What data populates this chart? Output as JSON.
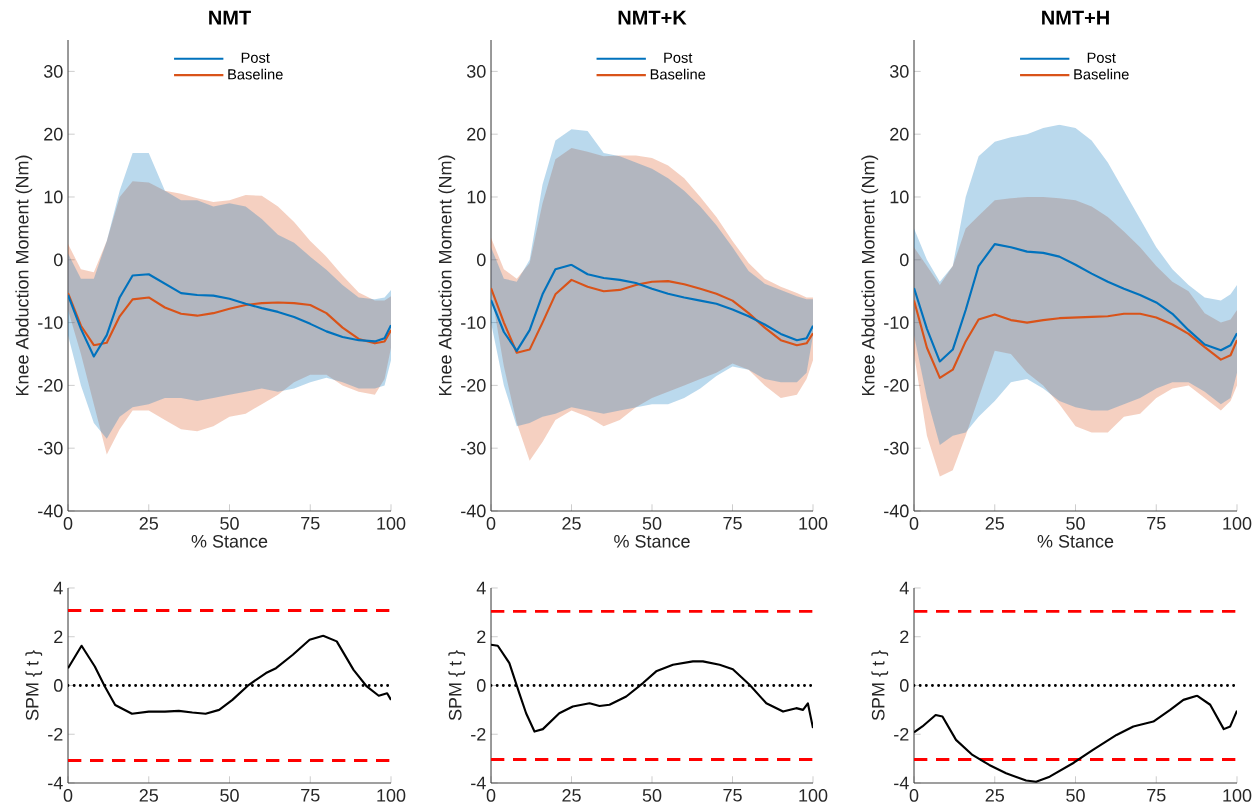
{
  "chart_data": [
    {
      "type": "line",
      "title": "NMT",
      "xlabel": "% Stance",
      "ylabel": "Knee Abduction Moment (Nm)",
      "legend": "top",
      "x": [
        0,
        4,
        8,
        12,
        16,
        20,
        25,
        30,
        35,
        40,
        45,
        50,
        55,
        60,
        65,
        70,
        75,
        80,
        85,
        90,
        95,
        98,
        100
      ],
      "xlim": [
        0,
        100
      ],
      "ylim": [
        -40,
        35
      ],
      "xticks": [
        0,
        25,
        50,
        75,
        100
      ],
      "yticks": [
        -40,
        -30,
        -20,
        -10,
        0,
        10,
        20,
        30
      ],
      "series": [
        {
          "name": "Post",
          "color": "#0072bd",
          "values": [
            -5.6,
            -11,
            -15.4,
            -12,
            -6,
            -2.5,
            -2.3,
            -3.8,
            -5.3,
            -5.6,
            -5.7,
            -6.2,
            -7,
            -7.7,
            -8.3,
            -9.1,
            -10.2,
            -11.4,
            -12.3,
            -12.8,
            -13,
            -12.5,
            -10.4
          ],
          "upper": [
            1,
            -3,
            -3,
            3,
            11,
            17,
            17,
            11,
            9.5,
            9.5,
            8.5,
            9,
            8.5,
            6.5,
            4,
            2.7,
            0.5,
            -1.6,
            -4,
            -6,
            -6.3,
            -6,
            -4.8
          ],
          "lower": [
            -12,
            -20,
            -26,
            -28.5,
            -25,
            -23.5,
            -23,
            -22,
            -22,
            -22.5,
            -22,
            -21.5,
            -21,
            -20.5,
            -21,
            -20.5,
            -19.5,
            -18.8,
            -19.5,
            -20.5,
            -20.5,
            -20,
            -16
          ]
        },
        {
          "name": "Baseline",
          "color": "#d95319",
          "values": [
            -5.3,
            -10.5,
            -13.6,
            -13.2,
            -9,
            -6.3,
            -6,
            -7.6,
            -8.6,
            -8.9,
            -8.5,
            -7.8,
            -7.2,
            -6.9,
            -6.8,
            -6.9,
            -7.2,
            -8.5,
            -10.8,
            -12.6,
            -13.3,
            -13,
            -11.2
          ],
          "upper": [
            2.5,
            -1.5,
            -2,
            3,
            10,
            12.5,
            12.3,
            11,
            10.5,
            9.8,
            9.2,
            9.5,
            10.3,
            10.2,
            8.5,
            6,
            3,
            0.5,
            -2.5,
            -5.2,
            -6.5,
            -6.5,
            -5.8
          ],
          "lower": [
            -8,
            -15,
            -23,
            -31,
            -27,
            -24,
            -24,
            -25.5,
            -27,
            -27.3,
            -26.5,
            -25,
            -24.5,
            -23,
            -21.5,
            -19.5,
            -18.3,
            -18.3,
            -20,
            -21,
            -21.5,
            -19,
            -14
          ]
        }
      ]
    },
    {
      "type": "line",
      "title": "NMT+K",
      "xlabel": "% Stance",
      "ylabel": "Knee Abduction Moment (Nm)",
      "legend": "top",
      "x": [
        0,
        4,
        8,
        12,
        16,
        20,
        25,
        30,
        35,
        40,
        45,
        50,
        55,
        60,
        65,
        70,
        75,
        80,
        85,
        90,
        95,
        98,
        100
      ],
      "xlim": [
        0,
        100
      ],
      "ylim": [
        -40,
        35
      ],
      "xticks": [
        0,
        25,
        50,
        75,
        100
      ],
      "yticks": [
        -40,
        -30,
        -20,
        -10,
        0,
        10,
        20,
        30
      ],
      "series": [
        {
          "name": "Post",
          "color": "#0072bd",
          "values": [
            -6.4,
            -11.5,
            -14.5,
            -11.2,
            -5.5,
            -1.5,
            -0.8,
            -2.3,
            -2.9,
            -3.2,
            -3.7,
            -4.6,
            -5.4,
            -6,
            -6.5,
            -7,
            -7.9,
            -9,
            -10.3,
            -11.8,
            -12.8,
            -12.5,
            -10.5
          ],
          "upper": [
            2,
            -3,
            -3.5,
            0,
            12,
            19,
            20.8,
            20.5,
            17,
            16.5,
            15.5,
            14.5,
            13,
            11,
            8.5,
            5.5,
            2,
            -1.8,
            -3.8,
            -4.8,
            -5.8,
            -6.3,
            -6.3
          ],
          "lower": [
            -10,
            -20,
            -26.5,
            -26,
            -25,
            -24.5,
            -23.5,
            -24,
            -24.5,
            -24,
            -23.5,
            -23,
            -23,
            -22,
            -20.5,
            -18.5,
            -17,
            -17.5,
            -19,
            -19.5,
            -19.5,
            -18,
            -12
          ]
        },
        {
          "name": "Baseline",
          "color": "#d95319",
          "values": [
            -4.5,
            -10,
            -14.8,
            -14.3,
            -10,
            -5.5,
            -3.2,
            -4.3,
            -5,
            -4.8,
            -4,
            -3.5,
            -3.4,
            -3.9,
            -4.6,
            -5.4,
            -6.5,
            -8.5,
            -10.8,
            -12.8,
            -13.6,
            -13.3,
            -11.7
          ],
          "upper": [
            3.5,
            -1.5,
            -3,
            -0.5,
            9,
            16,
            17.8,
            17.2,
            16.5,
            16.6,
            16.6,
            16.2,
            15,
            13,
            10,
            6.8,
            3,
            -0.5,
            -3,
            -4.3,
            -5.3,
            -6,
            -6
          ],
          "lower": [
            -5,
            -17,
            -26,
            -32,
            -29,
            -25.5,
            -24,
            -25,
            -26.5,
            -25.5,
            -23.5,
            -22,
            -21,
            -20,
            -19,
            -18,
            -16.5,
            -17.5,
            -20,
            -22,
            -21.5,
            -19,
            -16
          ]
        }
      ]
    },
    {
      "type": "line",
      "title": "NMT+H",
      "xlabel": "% Stance",
      "ylabel": "Knee Abduction Moment (Nm)",
      "legend": "top",
      "x": [
        0,
        4,
        8,
        12,
        16,
        20,
        25,
        30,
        35,
        40,
        45,
        50,
        55,
        60,
        65,
        70,
        75,
        80,
        85,
        90,
        95,
        98,
        100
      ],
      "xlim": [
        0,
        100
      ],
      "ylim": [
        -40,
        35
      ],
      "xticks": [
        0,
        25,
        50,
        75,
        100
      ],
      "yticks": [
        -40,
        -30,
        -20,
        -10,
        0,
        10,
        20,
        30
      ],
      "series": [
        {
          "name": "Post",
          "color": "#0072bd",
          "values": [
            -4.5,
            -11,
            -16.2,
            -14.3,
            -8,
            -1,
            2.5,
            2,
            1.3,
            1.1,
            0.5,
            -0.8,
            -2.2,
            -3.5,
            -4.6,
            -5.6,
            -6.8,
            -8.6,
            -11.2,
            -13.5,
            -14.4,
            -13.6,
            -11.7
          ],
          "upper": [
            5,
            0,
            -3.5,
            -1,
            10,
            16.5,
            18.8,
            19.5,
            20,
            21,
            21.5,
            21,
            19,
            15.5,
            11,
            6.5,
            2,
            -1.5,
            -4,
            -6,
            -6.5,
            -5.5,
            -4
          ],
          "lower": [
            -12,
            -22,
            -29.5,
            -28,
            -27.5,
            -25,
            -22.5,
            -19.5,
            -19,
            -20.5,
            -22.5,
            -23.5,
            -24,
            -24,
            -23,
            -22,
            -20.5,
            -19.5,
            -19.5,
            -21,
            -23,
            -22,
            -18
          ]
        },
        {
          "name": "Baseline",
          "color": "#d95319",
          "values": [
            -6.5,
            -14,
            -18.8,
            -17.5,
            -13,
            -9.5,
            -8.7,
            -9.6,
            -10,
            -9.6,
            -9.3,
            -9.2,
            -9.1,
            -9,
            -8.6,
            -8.6,
            -9.2,
            -10.3,
            -11.8,
            -13.9,
            -15.9,
            -15.2,
            -12.8
          ],
          "upper": [
            2,
            -1,
            -4,
            -1,
            5,
            7,
            9.5,
            9.8,
            10,
            10,
            9.8,
            9.5,
            8.5,
            6.8,
            4.5,
            2,
            -1,
            -3.5,
            -5,
            -8.5,
            -10,
            -9.5,
            -8
          ],
          "lower": [
            -15,
            -28,
            -34.5,
            -33.5,
            -28,
            -22,
            -14.5,
            -15,
            -18,
            -20,
            -23,
            -26.5,
            -27.5,
            -27.5,
            -25,
            -24.5,
            -22,
            -20.5,
            -20,
            -22,
            -24,
            -22.5,
            -20
          ]
        }
      ]
    },
    {
      "type": "line",
      "ylabel": "SPM { t }",
      "xlim": [
        0,
        100
      ],
      "ylim": [
        -4,
        4
      ],
      "xticks": [
        0,
        25,
        50,
        75,
        100
      ],
      "yticks": [
        -4,
        -2,
        0,
        2,
        4
      ],
      "series": [
        {
          "color": "#000000",
          "x": [
            0,
            4.2,
            8.3,
            11.4,
            14.6,
            19.8,
            25,
            30,
            34.3,
            38.5,
            42.6,
            46.8,
            50.9,
            56,
            61.3,
            64.4,
            69.6,
            74.8,
            79,
            83.2,
            88.4,
            92.5,
            96.2,
            98.8,
            100
          ],
          "values": [
            0.71,
            1.63,
            0.78,
            -0.04,
            -0.8,
            -1.16,
            -1.07,
            -1.07,
            -1.04,
            -1.11,
            -1.16,
            -1.0,
            -0.59,
            0.03,
            0.51,
            0.71,
            1.26,
            1.88,
            2.04,
            1.81,
            0.64,
            -0.04,
            -0.42,
            -0.32,
            -0.59
          ]
        }
      ],
      "ref_lines": [
        {
          "axis": "y",
          "value": 3.08,
          "color": "#ff0000",
          "line_style": "dashed"
        },
        {
          "axis": "y",
          "value": -3.08,
          "color": "#ff0000",
          "line_style": "dashed"
        },
        {
          "axis": "y",
          "value": 0,
          "color": "#000000",
          "line_style": "dotted"
        }
      ]
    },
    {
      "type": "line",
      "ylabel": "SPM { t }",
      "xlim": [
        0,
        100
      ],
      "ylim": [
        -4,
        4
      ],
      "xticks": [
        0,
        25,
        50,
        75,
        100
      ],
      "yticks": [
        -4,
        -2,
        0,
        2,
        4
      ],
      "series": [
        {
          "color": "#000000",
          "x": [
            0,
            2.1,
            5.7,
            8.8,
            10.9,
            13.5,
            16.1,
            21.2,
            25.4,
            30.6,
            33.7,
            36.8,
            42,
            47.2,
            51.3,
            56.5,
            62.7,
            65.8,
            71,
            75.1,
            80.3,
            85.5,
            90.7,
            94.8,
            96.9,
            98.4,
            100
          ],
          "values": [
            1.67,
            1.63,
            0.92,
            -0.32,
            -1.14,
            -1.89,
            -1.79,
            -1.14,
            -0.86,
            -0.73,
            -0.84,
            -0.79,
            -0.45,
            0.1,
            0.58,
            0.85,
            0.99,
            0.99,
            0.85,
            0.67,
            0.03,
            -0.73,
            -1.07,
            -0.93,
            -1.0,
            -0.73,
            -1.75
          ]
        }
      ],
      "ref_lines": [
        {
          "axis": "y",
          "value": 3.04,
          "color": "#ff0000",
          "line_style": "dashed"
        },
        {
          "axis": "y",
          "value": -3.04,
          "color": "#ff0000",
          "line_style": "dashed"
        },
        {
          "axis": "y",
          "value": 0,
          "color": "#000000",
          "line_style": "dotted"
        }
      ]
    },
    {
      "type": "line",
      "ylabel": "SPM { t }",
      "xlim": [
        0,
        100
      ],
      "ylim": [
        -4,
        4
      ],
      "xticks": [
        0,
        25,
        50,
        75,
        100
      ],
      "yticks": [
        -4,
        -2,
        0,
        2,
        4
      ],
      "series": [
        {
          "color": "#000000",
          "x": [
            0,
            2.6,
            6.7,
            8.8,
            13,
            18.1,
            23.3,
            28.5,
            34.7,
            37.8,
            42,
            49.2,
            55.4,
            62.7,
            67.9,
            74.1,
            79.3,
            83.4,
            87.6,
            91.7,
            95.9,
            97.9,
            100
          ],
          "values": [
            -1.92,
            -1.68,
            -1.21,
            -1.27,
            -2.23,
            -2.85,
            -3.26,
            -3.6,
            -3.9,
            -3.95,
            -3.74,
            -3.19,
            -2.64,
            -2.03,
            -1.68,
            -1.48,
            -1.0,
            -0.59,
            -0.42,
            -0.79,
            -1.79,
            -1.68,
            -1.03
          ]
        }
      ],
      "ref_lines": [
        {
          "axis": "y",
          "value": 3.04,
          "color": "#ff0000",
          "line_style": "dashed"
        },
        {
          "axis": "y",
          "value": -3.04,
          "color": "#ff0000",
          "line_style": "dashed"
        },
        {
          "axis": "y",
          "value": 0,
          "color": "#000000",
          "line_style": "dotted"
        }
      ]
    }
  ]
}
